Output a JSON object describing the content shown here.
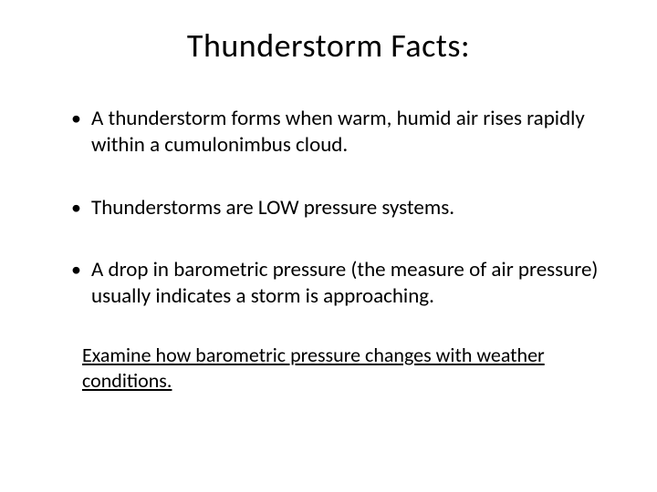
{
  "title": "Thunderstorm Facts:",
  "bullets": [
    "A thunderstorm forms when warm, humid air rises rapidly within a cumulonimbus cloud.",
    "Thunderstorms are LOW pressure systems.",
    "A drop in barometric pressure (the measure of air pressure) usually indicates a storm is approaching."
  ],
  "note": "Examine how barometric pressure changes with weather conditions.",
  "colors": {
    "background": "#ffffff",
    "text": "#000000"
  },
  "typography": {
    "title_fontsize": 36,
    "body_fontsize": 23,
    "note_fontsize": 22,
    "font_family": "Calibri"
  }
}
